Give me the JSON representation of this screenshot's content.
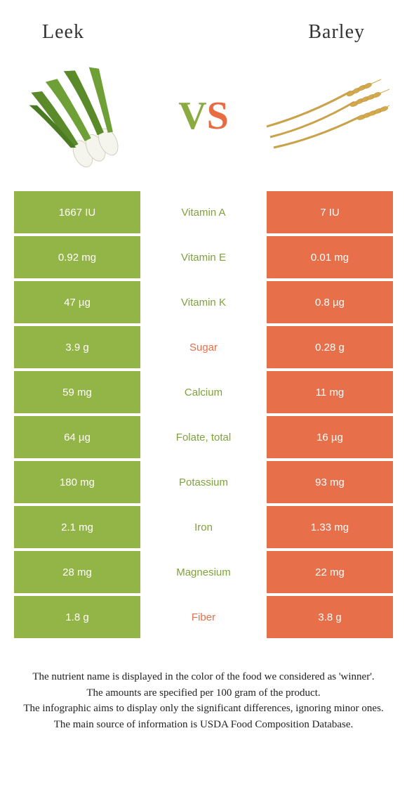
{
  "header": {
    "left_title": "Leek",
    "right_title": "Barley"
  },
  "vs": {
    "v": "V",
    "s": "S"
  },
  "colors": {
    "green": "#93b447",
    "orange": "#e7704a",
    "green_text": "#7fa23a",
    "orange_text": "#e7704a"
  },
  "table": {
    "rows": [
      {
        "nutrient": "Vitamin A",
        "left": "1667 IU",
        "right": "7 IU",
        "winner": "left"
      },
      {
        "nutrient": "Vitamin E",
        "left": "0.92 mg",
        "right": "0.01 mg",
        "winner": "left"
      },
      {
        "nutrient": "Vitamin K",
        "left": "47 µg",
        "right": "0.8 µg",
        "winner": "left"
      },
      {
        "nutrient": "Sugar",
        "left": "3.9 g",
        "right": "0.28 g",
        "winner": "right"
      },
      {
        "nutrient": "Calcium",
        "left": "59 mg",
        "right": "11 mg",
        "winner": "left"
      },
      {
        "nutrient": "Folate, total",
        "left": "64 µg",
        "right": "16 µg",
        "winner": "left"
      },
      {
        "nutrient": "Potassium",
        "left": "180 mg",
        "right": "93 mg",
        "winner": "left"
      },
      {
        "nutrient": "Iron",
        "left": "2.1 mg",
        "right": "1.33 mg",
        "winner": "left"
      },
      {
        "nutrient": "Magnesium",
        "left": "28 mg",
        "right": "22 mg",
        "winner": "left"
      },
      {
        "nutrient": "Fiber",
        "left": "1.8 g",
        "right": "3.8 g",
        "winner": "right"
      }
    ]
  },
  "footer": {
    "line1": "The nutrient name is displayed in the color of the food we considered as 'winner'.",
    "line2": "The amounts are specified per 100 gram of the product.",
    "line3": "The infographic aims to display only the significant differences, ignoring minor ones.",
    "line4": "The main source of information is USDA Food Composition Database."
  }
}
